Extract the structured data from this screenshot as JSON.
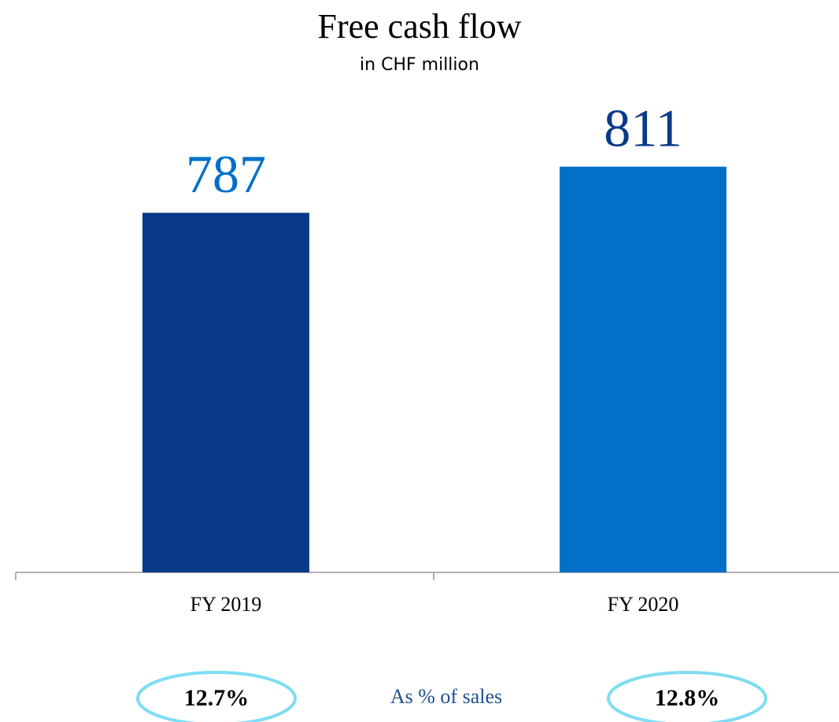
{
  "chart_data": {
    "type": "bar",
    "title": "Free cash flow",
    "subtitle": "in CHF million",
    "categories": [
      "FY 2019",
      "FY 2020"
    ],
    "values": [
      787,
      811
    ],
    "colors": [
      "#083a87",
      "#0070c8"
    ],
    "value_label_colors": [
      "#0070c8",
      "#083a87"
    ],
    "ylim": [
      600,
      860
    ],
    "annotation": {
      "label": "As % of sales",
      "values": [
        12.7,
        12.8
      ],
      "value_labels": [
        "12.7%",
        "12.8%"
      ],
      "color": "#7fdcf4"
    }
  }
}
